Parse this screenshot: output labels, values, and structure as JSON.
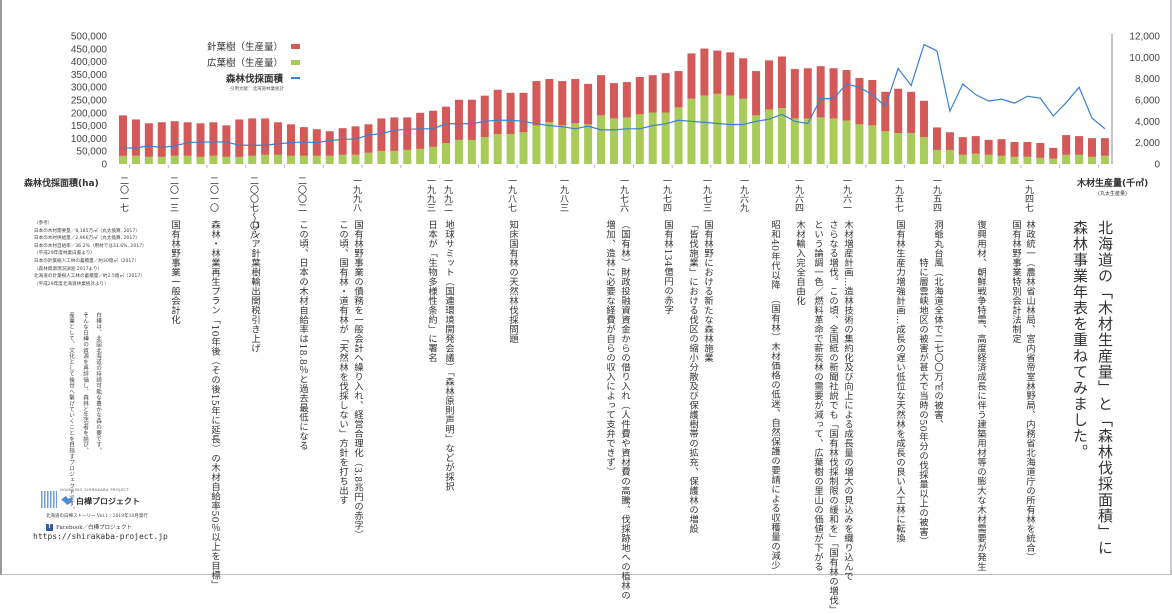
{
  "title": {
    "line1": "北海道の「木材生産量」と「森林伐採面積」に",
    "line2": "森林事業年表を重ねてみました。"
  },
  "colors": {
    "coniferous": "#d35a58",
    "broadleaf": "#a8cb5a",
    "area_line": "#3c80d2"
  },
  "chart_data": {
    "type": "bar+line",
    "year_start": 2017,
    "year_end": 1941,
    "left_axis": {
      "label": "森林伐採面積(ha)",
      "ticks": [
        "500,000",
        "450,000",
        "400,000",
        "350,000",
        "300,000",
        "250,000",
        "200,000",
        "150,000",
        "100,000",
        "50,000",
        "0"
      ],
      "range": [
        0,
        500000
      ]
    },
    "right_axis": {
      "label": "木材生産量(千㎥)",
      "sublabel": "(丸太生産量)",
      "ticks": [
        "12,000",
        "10,000",
        "8,000",
        "6,000",
        "4,000",
        "2,000",
        "0"
      ],
      "range": [
        0,
        12000
      ]
    },
    "legend": {
      "coniferous": "針葉樹（生産量）",
      "broadleaf": "広葉樹（生産量）",
      "area": "森林伐採面積",
      "source": "引用文献：北海道林業統計"
    },
    "series": [
      {
        "name": "針葉樹（生産量）",
        "type": "bar-stacked",
        "values": [
          158000,
          142000,
          131000,
          135000,
          135000,
          131000,
          131000,
          131000,
          123000,
          146000,
          146000,
          142000,
          127000,
          123000,
          112000,
          104000,
          96000,
          104000,
          111000,
          111000,
          127000,
          131000,
          127000,
          141000,
          141000,
          142000,
          157000,
          157000,
          162000,
          173000,
          161000,
          154000,
          173000,
          169000,
          173000,
          173000,
          158000,
          157000,
          138000,
          138000,
          146000,
          146000,
          154000,
          142000,
          177000,
          184000,
          169000,
          169000,
          158000,
          173000,
          192000,
          202000,
          193000,
          196000,
          200000,
          196000,
          197000,
          181000,
          177000,
          154000,
          173000,
          161000,
          142000,
          88000,
          69000,
          69000,
          69000,
          58000,
          65000,
          58000,
          58000,
          58000,
          42000,
          77000,
          73000,
          73000,
          69000
        ]
      },
      {
        "name": "広葉樹（生産量）",
        "type": "bar-stacked",
        "values": [
          32000,
          32000,
          28000,
          28000,
          32000,
          32000,
          28000,
          32000,
          28000,
          28000,
          32000,
          36000,
          36000,
          32000,
          32000,
          32000,
          32000,
          36000,
          36000,
          44000,
          51000,
          51000,
          55000,
          59000,
          67000,
          82000,
          94000,
          94000,
          105000,
          117000,
          117000,
          124000,
          151000,
          163000,
          151000,
          159000,
          155000,
          190000,
          178000,
          182000,
          194000,
          201000,
          201000,
          221000,
          255000,
          267000,
          274000,
          267000,
          255000,
          190000,
          213000,
          218000,
          178000,
          178000,
          182000,
          178000,
          170000,
          155000,
          151000,
          128000,
          121000,
          121000,
          105000,
          55000,
          55000,
          36000,
          40000,
          36000,
          32000,
          28000,
          28000,
          24000,
          21000,
          36000,
          36000,
          28000,
          32000
        ]
      },
      {
        "name": "森林伐採面積",
        "type": "line",
        "values": [
          1500,
          1500,
          1700,
          1550,
          1700,
          2000,
          2070,
          2070,
          2070,
          1760,
          1760,
          1760,
          1900,
          2000,
          2070,
          2000,
          2200,
          2300,
          2350,
          2700,
          2860,
          3160,
          3250,
          3300,
          3300,
          3770,
          3770,
          3770,
          4000,
          4100,
          4100,
          4000,
          3770,
          3600,
          3500,
          3300,
          3550,
          3200,
          3200,
          3300,
          3300,
          3600,
          3770,
          4100,
          4000,
          3900,
          3800,
          3700,
          3700,
          4000,
          4200,
          4650,
          4000,
          3800,
          6130,
          6130,
          7500,
          7200,
          6500,
          5400,
          8960,
          7350,
          11200,
          10600,
          4950,
          7500,
          6500,
          5900,
          6080,
          5700,
          6350,
          6170,
          4500,
          5750,
          7200,
          4300,
          3300
        ]
      }
    ]
  },
  "timeline": [
    {
      "year": 2017,
      "label": "二〇一七",
      "lines": []
    },
    {
      "year": 2013,
      "label": "二〇一三",
      "lines": [
        "国有林野事業一般会計化"
      ]
    },
    {
      "year": 2010,
      "label": "二〇一〇",
      "lines": [
        "森林・林業再生プラン「10年後（その後15年に延長）の木材自給率50％以上を目標」"
      ]
    },
    {
      "year": 2007,
      "label": "二〇〇七〜〇八",
      "lines": [
        "ロシア針葉樹輸出関税引き上げ"
      ]
    },
    {
      "year": 2002,
      "label": "二〇〇二",
      "lines": [
        "この頃、日本の木材自給率は18.8％と過去最低になる"
      ]
    },
    {
      "year": 1998,
      "label": "一九九八",
      "lines": [
        "国有林野事業の債務を一般会計へ繰り入れ、経営合理化（3.8兆円の赤字）",
        "この頃、国有林・道有林が「天然林を伐採しない」方針を打ち出す"
      ]
    },
    {
      "year": 1993,
      "label": "一九九三",
      "lines": [
        "日本が「生物多様性条約」に署名"
      ]
    },
    {
      "year": 1992,
      "label": "一九九二",
      "lines": [
        "地球サミット（国連環境開発会議）「森林原則声明」などが採択"
      ]
    },
    {
      "year": 1987,
      "label": "一九八七",
      "lines": [
        "知床国有林の天然林伐採問題"
      ]
    },
    {
      "year": 1983,
      "label": "一九八三",
      "lines": []
    },
    {
      "year": 1976,
      "label": "一九七六",
      "lines": [
        "（国有林）財政投融資資金からの借り入れ（人件費や資材費の高騰、伐採跡地への植林の",
        "増加、造林に必要な経費が自らの収入によって支弁できず）"
      ]
    },
    {
      "year": 1974,
      "label": "一九七四",
      "lines": [
        "国有林134億円の赤字"
      ]
    },
    {
      "year": 1973,
      "label": "一九七三",
      "lines": [
        "国有林野における新たな森林施業",
        "「皆伐施業」における伐区の縮小分散及び保護樹帯の拡充、保護林の増設"
      ]
    },
    {
      "year": 1969,
      "label": "一九六九",
      "lines": []
    },
    {
      "year": 1967,
      "label": "",
      "lines": [
        "昭和40年代以降　（国有林）木材価格の低迷、自然保護の要請による収穫量の減少"
      ]
    },
    {
      "year": 1964,
      "label": "一九六四",
      "lines": [
        "木材輸入完全自由化"
      ]
    },
    {
      "year": 1961,
      "label": "一九六一",
      "lines": [
        "木材増産計画…造林技術の集約化及び向上による成長量の増大の見込みを織り込んで",
        "さらなる増伐。この頃、全国紙の新聞社説でも「国有林伐採制限の緩和を」「国有林の増伐」",
        "という論調一色／燃料革命で薪炭林の需要が減って、広葉樹の里山の価値が下がる"
      ]
    },
    {
      "year": 1957,
      "label": "一九五七",
      "lines": [
        "国有林生産力増強計画…成長の遅い低位な天然林を成長の良い人工林に転換"
      ]
    },
    {
      "year": 1954,
      "label": "一九五四",
      "lines": [
        "洞爺丸台風（北海道全体で二七〇〇万㎥の被害、",
        "　　　　特に層雲峡地区の被害が甚大で当時の50年分の伐採量以上の被害）"
      ]
    },
    {
      "year": 1947,
      "label": "一九四七",
      "lines": [
        "林政統一（農林省山林局、宮内省帝室林野局、内務省北海道庁の所有林を統合）",
        "国有林野事業特別会計法制定",
        "",
        "復興用材、朝鮮戦争特需、高度経済成長に伴う建築用材等の膨大な木材需要が発生"
      ]
    }
  ],
  "references": [
    "（参考）",
    "日本の木材需要量／8,185万㎥（丸太換算, 2017）",
    "日本の木材供給量／2,966万㎥（丸太換算, 2017）",
    "日本の木材自給率／36.2%（用材では31.6%, 2017）",
    "（平成29年度林業白書より）",
    "日本の針葉樹人工林の蓄積量／約30億㎥（2017）",
    "（森林資源現況調査 2017より）",
    "北海道の針葉樹人工林の蓄積量／約2.5億㎥（2017）",
    "（平成29年度北海道林業統計より）"
  ],
  "blurb": [
    "白樺は、北国北海道の持続可能な豊かな森の要です。",
    "そんな白樺の資源を再評価し、森林と生活者を結び、",
    "産業として、文化として後世へ繋げていくことを目指すプロジェクトです。"
  ],
  "footer": {
    "logo_sub": "HOKKAIDO SHIRAKABA PROJECT",
    "logo_name": "白樺プロジェクト",
    "issue": "北海道の白樺ストーリー Vol.1／2019年10月発行",
    "facebook": "Facebook／白樺プロジェクト",
    "url": "https://shirakaba-project.jp"
  }
}
